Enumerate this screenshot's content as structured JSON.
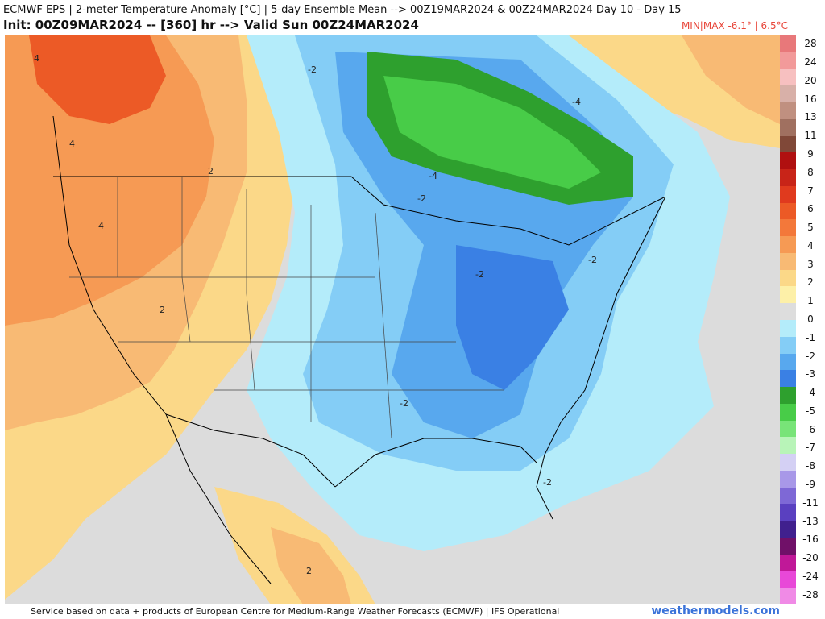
{
  "header": {
    "title": "ECMWF EPS | 2-meter Temperature Anomaly [°C] | 5-day Ensemble Mean --> 00Z19MAR2024 & 00Z24MAR2024   Day 10 - Day 15",
    "subtitle": "Init: 00Z09MAR2024 -- [360] hr --> Valid Sun 00Z24MAR2024",
    "minmax": "MIN|MAX -6.1° | 6.5°C"
  },
  "footer": {
    "credit": "Service based on data + products of European Centre for Medium-Range Weather Forecasts (ECMWF) | IFS Operational",
    "brand": "weathermodels.com"
  },
  "colorbar": {
    "labels": [
      "28",
      "24",
      "20",
      "16",
      "13",
      "11",
      "9",
      "8",
      "7",
      "6",
      "5",
      "4",
      "3",
      "2",
      "1",
      "0",
      "-1",
      "-2",
      "-3",
      "-4",
      "-5",
      "-6",
      "-7",
      "-8",
      "-9",
      "-11",
      "-13",
      "-16",
      "-20",
      "-24",
      "-28"
    ],
    "colors": [
      "#e8787a",
      "#f29a9a",
      "#f7c0c0",
      "#d8b0a8",
      "#c09080",
      "#a07060",
      "#804838",
      "#b01010",
      "#c82418",
      "#e03a1e",
      "#ec5a26",
      "#f3783a",
      "#f69a54",
      "#f8ba74",
      "#fbd888",
      "#fdf0a8",
      "#dddddd",
      "#b4ecfa",
      "#84cdf6",
      "#58a8ee",
      "#3a80e4",
      "#2ea02e",
      "#48cc48",
      "#78e478",
      "#b8f4b8",
      "#d4d0f4",
      "#a898e8",
      "#7e68d6",
      "#5a40c0",
      "#40208e",
      "#701068",
      "#c01898",
      "#e848d8",
      "#f08ae6"
    ]
  },
  "map": {
    "region": "North America",
    "contour_labels": [
      "4",
      "4",
      "4",
      "2",
      "2",
      "-2",
      "-2",
      "-2",
      "-2",
      "-2",
      "-2",
      "2",
      "-4",
      "-4"
    ]
  }
}
